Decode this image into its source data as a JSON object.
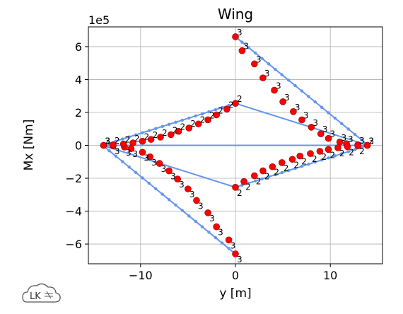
{
  "chart_data": {
    "type": "scatter",
    "title": "Wing",
    "xlabel": "y [m]",
    "ylabel": "Mx [Nm]",
    "y_scale_label": "1e5",
    "y_scale_factor": 100000,
    "xlim": [
      -15.5,
      15.5
    ],
    "ylim": [
      -7.2,
      7.2
    ],
    "xticks": [
      -10,
      0,
      10
    ],
    "xtick_labels": [
      "−10",
      "0",
      "10"
    ],
    "yticks": [
      -6,
      -4,
      -2,
      0,
      2,
      4,
      6
    ],
    "ytick_labels": [
      "−6",
      "−4",
      "−2",
      "0",
      "2",
      "4",
      "6"
    ],
    "grid": true,
    "legend": "none",
    "colors": {
      "line": "#6495ED",
      "points": "#FF0000",
      "point_edge": "#8B0000",
      "grid": "#b0b0b0"
    },
    "series": [
      {
        "label": "3",
        "side": "right",
        "line_x": [
          0,
          14
        ],
        "line_y": [
          6.6,
          0
        ],
        "x": [
          0,
          0.7,
          2.0,
          2.9,
          4.1,
          5.0,
          6.1,
          7.0,
          8.0,
          9.0,
          9.8,
          11.0,
          11.7,
          12.9,
          13.9
        ],
        "y": [
          6.6,
          5.75,
          4.95,
          4.1,
          3.35,
          2.65,
          2.05,
          1.55,
          1.1,
          0.7,
          0.42,
          0.2,
          0.1,
          0.03,
          0.0
        ]
      },
      {
        "label": "3",
        "side": "left",
        "line_x": [
          0,
          -14
        ],
        "line_y": [
          -6.6,
          0
        ],
        "x": [
          0,
          -0.7,
          -2.0,
          -2.9,
          -4.1,
          -5.0,
          -6.1,
          -7.0,
          -8.0,
          -9.0,
          -9.8,
          -11.0,
          -11.7,
          -12.9,
          -13.9
        ],
        "y": [
          -6.6,
          -5.75,
          -4.95,
          -4.1,
          -3.35,
          -2.65,
          -2.05,
          -1.55,
          -1.1,
          -0.7,
          -0.42,
          -0.2,
          -0.1,
          -0.03,
          0.0
        ]
      },
      {
        "label": "2",
        "side": "right",
        "line_x": [
          0,
          14
        ],
        "line_y": [
          -2.55,
          0
        ],
        "x": [
          0,
          0.9,
          2.0,
          2.9,
          3.9,
          4.9,
          6.0,
          6.8,
          7.9,
          8.9,
          9.8,
          10.8,
          11.8,
          12.9,
          13.9
        ],
        "y": [
          -2.55,
          -2.2,
          -1.85,
          -1.55,
          -1.3,
          -1.05,
          -0.85,
          -0.65,
          -0.5,
          -0.36,
          -0.25,
          -0.15,
          -0.08,
          -0.03,
          0.0
        ]
      },
      {
        "label": "2",
        "side": "left",
        "line_x": [
          0,
          -14
        ],
        "line_y": [
          2.55,
          0
        ],
        "x": [
          0,
          -0.9,
          -2.0,
          -2.9,
          -3.9,
          -4.9,
          -6.0,
          -6.8,
          -7.9,
          -8.9,
          -9.8,
          -10.8,
          -11.8,
          -12.9,
          -13.9
        ],
        "y": [
          2.55,
          2.2,
          1.85,
          1.55,
          1.3,
          1.05,
          0.85,
          0.65,
          0.5,
          0.36,
          0.25,
          0.15,
          0.08,
          0.03,
          0.0
        ]
      }
    ],
    "extra_lines": [
      {
        "x": [
          0,
          14
        ],
        "y": [
          2.55,
          0
        ]
      },
      {
        "x": [
          0,
          -14
        ],
        "y": [
          -2.55,
          0
        ]
      },
      {
        "x": [
          -14,
          14
        ],
        "y": [
          0,
          0
        ]
      }
    ]
  },
  "logo": {
    "text": "LK"
  }
}
